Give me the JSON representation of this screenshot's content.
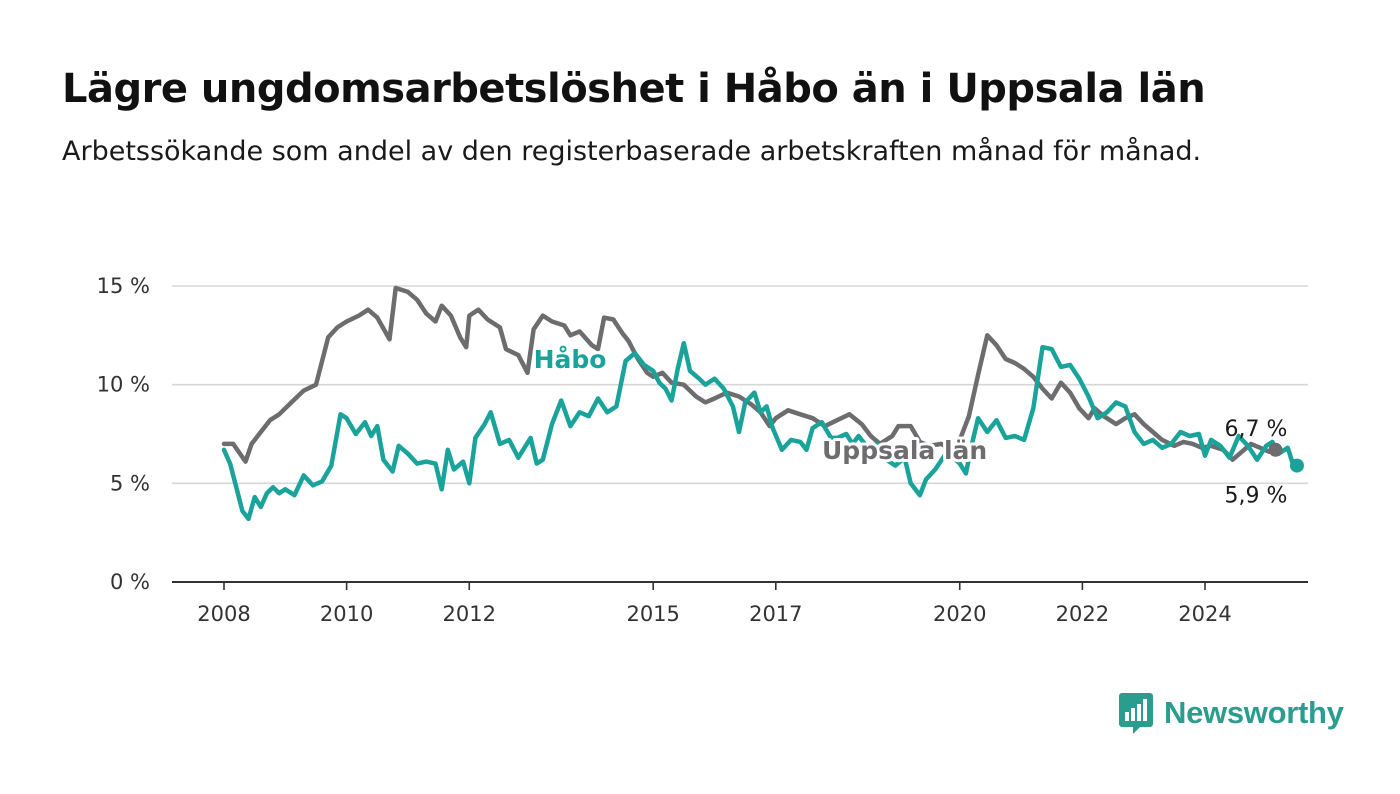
{
  "title": "Lägre ungdomsarbetslöshet i Håbo än i Uppsala län",
  "subtitle": "Arbetssökande som andel av den registerbaserade arbetskraften månad för månad.",
  "brand": {
    "name": "Newsworthy",
    "color": "#2a9d8f"
  },
  "chart_data": {
    "type": "line",
    "title": "Lägre ungdomsarbetslöshet i Håbo än i Uppsala län",
    "subtitle": "Arbetssökande som andel av den registerbaserade arbetskraften månad för månad.",
    "xlabel": "",
    "ylabel": "",
    "ylim": [
      0,
      15
    ],
    "xlim": [
      2008.0,
      2025.5
    ],
    "grid": "horizontal",
    "legend": "direct labels on lines",
    "y_ticks": [
      {
        "value": 0,
        "label": "0 %"
      },
      {
        "value": 5,
        "label": "5 %"
      },
      {
        "value": 10,
        "label": "10 %"
      },
      {
        "value": 15,
        "label": "15 %"
      }
    ],
    "x_ticks": [
      {
        "value": 2008,
        "label": "2008"
      },
      {
        "value": 2010,
        "label": "2010"
      },
      {
        "value": 2012,
        "label": "2012"
      },
      {
        "value": 2015,
        "label": "2015"
      },
      {
        "value": 2017,
        "label": "2017"
      },
      {
        "value": 2020,
        "label": "2020"
      },
      {
        "value": 2022,
        "label": "2022"
      },
      {
        "value": 2024,
        "label": "2024"
      }
    ],
    "series": [
      {
        "name": "Uppsala län",
        "color": "#6d6d70",
        "end_label": "6,7 %",
        "points": [
          [
            2008.0,
            7.0
          ],
          [
            2008.15,
            7.0
          ],
          [
            2008.35,
            6.1
          ],
          [
            2008.45,
            7.0
          ],
          [
            2008.6,
            7.6
          ],
          [
            2008.75,
            8.2
          ],
          [
            2008.9,
            8.5
          ],
          [
            2009.1,
            9.1
          ],
          [
            2009.3,
            9.7
          ],
          [
            2009.5,
            10.0
          ],
          [
            2009.7,
            12.4
          ],
          [
            2009.85,
            12.9
          ],
          [
            2010.0,
            13.2
          ],
          [
            2010.2,
            13.5
          ],
          [
            2010.35,
            13.8
          ],
          [
            2010.5,
            13.4
          ],
          [
            2010.7,
            12.3
          ],
          [
            2010.8,
            14.9
          ],
          [
            2011.0,
            14.7
          ],
          [
            2011.15,
            14.3
          ],
          [
            2011.3,
            13.6
          ],
          [
            2011.45,
            13.2
          ],
          [
            2011.55,
            14.0
          ],
          [
            2011.7,
            13.5
          ],
          [
            2011.85,
            12.4
          ],
          [
            2011.95,
            11.9
          ],
          [
            2012.0,
            13.5
          ],
          [
            2012.15,
            13.8
          ],
          [
            2012.3,
            13.3
          ],
          [
            2012.5,
            12.9
          ],
          [
            2012.6,
            11.8
          ],
          [
            2012.8,
            11.5
          ],
          [
            2012.95,
            10.6
          ],
          [
            2013.05,
            12.8
          ],
          [
            2013.2,
            13.5
          ],
          [
            2013.35,
            13.2
          ],
          [
            2013.55,
            13.0
          ],
          [
            2013.65,
            12.5
          ],
          [
            2013.8,
            12.7
          ],
          [
            2014.0,
            12.0
          ],
          [
            2014.1,
            11.8
          ],
          [
            2014.2,
            13.4
          ],
          [
            2014.35,
            13.3
          ],
          [
            2014.5,
            12.6
          ],
          [
            2014.6,
            12.2
          ],
          [
            2014.75,
            11.3
          ],
          [
            2014.9,
            10.6
          ],
          [
            2015.0,
            10.4
          ],
          [
            2015.15,
            10.6
          ],
          [
            2015.3,
            10.1
          ],
          [
            2015.5,
            10.0
          ],
          [
            2015.7,
            9.4
          ],
          [
            2015.85,
            9.1
          ],
          [
            2016.0,
            9.3
          ],
          [
            2016.2,
            9.6
          ],
          [
            2016.4,
            9.4
          ],
          [
            2016.6,
            9.0
          ],
          [
            2016.75,
            8.6
          ],
          [
            2016.9,
            7.9
          ],
          [
            2017.0,
            8.3
          ],
          [
            2017.2,
            8.7
          ],
          [
            2017.4,
            8.5
          ],
          [
            2017.6,
            8.3
          ],
          [
            2017.8,
            7.9
          ],
          [
            2018.0,
            8.2
          ],
          [
            2018.2,
            8.5
          ],
          [
            2018.4,
            8.0
          ],
          [
            2018.55,
            7.4
          ],
          [
            2018.7,
            7.0
          ],
          [
            2018.9,
            7.4
          ],
          [
            2019.0,
            7.9
          ],
          [
            2019.2,
            7.9
          ],
          [
            2019.35,
            7.1
          ],
          [
            2019.5,
            6.9
          ],
          [
            2019.7,
            7.0
          ],
          [
            2019.85,
            6.7
          ],
          [
            2020.0,
            7.2
          ],
          [
            2020.15,
            8.4
          ],
          [
            2020.3,
            10.5
          ],
          [
            2020.45,
            12.5
          ],
          [
            2020.6,
            12.0
          ],
          [
            2020.75,
            11.3
          ],
          [
            2020.9,
            11.1
          ],
          [
            2021.05,
            10.8
          ],
          [
            2021.2,
            10.4
          ],
          [
            2021.35,
            9.8
          ],
          [
            2021.5,
            9.3
          ],
          [
            2021.65,
            10.1
          ],
          [
            2021.8,
            9.6
          ],
          [
            2021.95,
            8.8
          ],
          [
            2022.1,
            8.3
          ],
          [
            2022.2,
            8.8
          ],
          [
            2022.35,
            8.4
          ],
          [
            2022.55,
            8.0
          ],
          [
            2022.7,
            8.3
          ],
          [
            2022.85,
            8.5
          ],
          [
            2023.0,
            8.0
          ],
          [
            2023.15,
            7.6
          ],
          [
            2023.3,
            7.2
          ],
          [
            2023.5,
            6.9
          ],
          [
            2023.65,
            7.1
          ],
          [
            2023.8,
            7.0
          ],
          [
            2023.95,
            6.8
          ],
          [
            2024.1,
            6.9
          ],
          [
            2024.3,
            6.7
          ],
          [
            2024.45,
            6.2
          ],
          [
            2024.6,
            6.6
          ],
          [
            2024.75,
            7.0
          ],
          [
            2024.9,
            6.8
          ],
          [
            2025.05,
            6.6
          ],
          [
            2025.15,
            6.7
          ]
        ]
      },
      {
        "name": "Håbo",
        "color": "#1aa39a",
        "end_label": "5,9 %",
        "points": [
          [
            2008.0,
            6.7
          ],
          [
            2008.1,
            6.0
          ],
          [
            2008.2,
            4.8
          ],
          [
            2008.3,
            3.6
          ],
          [
            2008.4,
            3.2
          ],
          [
            2008.5,
            4.3
          ],
          [
            2008.6,
            3.8
          ],
          [
            2008.7,
            4.5
          ],
          [
            2008.8,
            4.8
          ],
          [
            2008.9,
            4.5
          ],
          [
            2009.0,
            4.7
          ],
          [
            2009.15,
            4.4
          ],
          [
            2009.3,
            5.4
          ],
          [
            2009.45,
            4.9
          ],
          [
            2009.6,
            5.1
          ],
          [
            2009.75,
            5.9
          ],
          [
            2009.9,
            8.5
          ],
          [
            2010.0,
            8.3
          ],
          [
            2010.15,
            7.5
          ],
          [
            2010.3,
            8.1
          ],
          [
            2010.4,
            7.4
          ],
          [
            2010.5,
            7.9
          ],
          [
            2010.6,
            6.2
          ],
          [
            2010.75,
            5.6
          ],
          [
            2010.85,
            6.9
          ],
          [
            2011.0,
            6.5
          ],
          [
            2011.15,
            6.0
          ],
          [
            2011.3,
            6.1
          ],
          [
            2011.45,
            6.0
          ],
          [
            2011.55,
            4.7
          ],
          [
            2011.65,
            6.7
          ],
          [
            2011.75,
            5.7
          ],
          [
            2011.9,
            6.1
          ],
          [
            2012.0,
            5.0
          ],
          [
            2012.1,
            7.3
          ],
          [
            2012.25,
            8.0
          ],
          [
            2012.35,
            8.6
          ],
          [
            2012.5,
            7.0
          ],
          [
            2012.65,
            7.2
          ],
          [
            2012.8,
            6.3
          ],
          [
            2012.9,
            6.8
          ],
          [
            2013.0,
            7.3
          ],
          [
            2013.1,
            6.0
          ],
          [
            2013.2,
            6.2
          ],
          [
            2013.35,
            8.0
          ],
          [
            2013.5,
            9.2
          ],
          [
            2013.65,
            7.9
          ],
          [
            2013.8,
            8.6
          ],
          [
            2013.95,
            8.4
          ],
          [
            2014.1,
            9.3
          ],
          [
            2014.25,
            8.6
          ],
          [
            2014.4,
            8.9
          ],
          [
            2014.55,
            11.2
          ],
          [
            2014.7,
            11.6
          ],
          [
            2014.85,
            11.0
          ],
          [
            2015.0,
            10.7
          ],
          [
            2015.1,
            10.1
          ],
          [
            2015.2,
            9.8
          ],
          [
            2015.3,
            9.2
          ],
          [
            2015.4,
            10.8
          ],
          [
            2015.5,
            12.1
          ],
          [
            2015.6,
            10.7
          ],
          [
            2015.75,
            10.3
          ],
          [
            2015.85,
            10.0
          ],
          [
            2016.0,
            10.3
          ],
          [
            2016.15,
            9.8
          ],
          [
            2016.3,
            8.9
          ],
          [
            2016.4,
            7.6
          ],
          [
            2016.5,
            9.1
          ],
          [
            2016.65,
            9.6
          ],
          [
            2016.75,
            8.6
          ],
          [
            2016.85,
            8.9
          ],
          [
            2016.95,
            7.8
          ],
          [
            2017.1,
            6.7
          ],
          [
            2017.25,
            7.2
          ],
          [
            2017.4,
            7.1
          ],
          [
            2017.5,
            6.7
          ],
          [
            2017.6,
            7.8
          ],
          [
            2017.75,
            8.1
          ],
          [
            2017.9,
            7.3
          ],
          [
            2018.0,
            7.3
          ],
          [
            2018.15,
            7.5
          ],
          [
            2018.25,
            7.0
          ],
          [
            2018.35,
            7.4
          ],
          [
            2018.5,
            6.8
          ],
          [
            2018.65,
            7.0
          ],
          [
            2018.8,
            6.2
          ],
          [
            2018.95,
            5.9
          ],
          [
            2019.1,
            6.3
          ],
          [
            2019.2,
            5.0
          ],
          [
            2019.35,
            4.4
          ],
          [
            2019.45,
            5.2
          ],
          [
            2019.6,
            5.7
          ],
          [
            2019.75,
            6.4
          ],
          [
            2019.9,
            6.3
          ],
          [
            2020.0,
            6.0
          ],
          [
            2020.1,
            5.5
          ],
          [
            2020.2,
            7.0
          ],
          [
            2020.3,
            8.3
          ],
          [
            2020.45,
            7.6
          ],
          [
            2020.6,
            8.2
          ],
          [
            2020.75,
            7.3
          ],
          [
            2020.9,
            7.4
          ],
          [
            2021.05,
            7.2
          ],
          [
            2021.2,
            8.8
          ],
          [
            2021.35,
            11.9
          ],
          [
            2021.5,
            11.8
          ],
          [
            2021.65,
            10.9
          ],
          [
            2021.8,
            11.0
          ],
          [
            2021.95,
            10.3
          ],
          [
            2022.1,
            9.4
          ],
          [
            2022.25,
            8.3
          ],
          [
            2022.4,
            8.6
          ],
          [
            2022.55,
            9.1
          ],
          [
            2022.7,
            8.9
          ],
          [
            2022.85,
            7.6
          ],
          [
            2023.0,
            7.0
          ],
          [
            2023.15,
            7.2
          ],
          [
            2023.3,
            6.8
          ],
          [
            2023.45,
            7.0
          ],
          [
            2023.6,
            7.6
          ],
          [
            2023.75,
            7.4
          ],
          [
            2023.9,
            7.5
          ],
          [
            2024.0,
            6.4
          ],
          [
            2024.1,
            7.2
          ],
          [
            2024.25,
            6.9
          ],
          [
            2024.4,
            6.3
          ],
          [
            2024.55,
            7.4
          ],
          [
            2024.7,
            6.9
          ],
          [
            2024.85,
            6.2
          ],
          [
            2025.0,
            6.9
          ],
          [
            2025.1,
            7.1
          ],
          [
            2025.2,
            6.5
          ],
          [
            2025.35,
            6.8
          ],
          [
            2025.45,
            5.8
          ],
          [
            2025.5,
            5.9
          ]
        ]
      }
    ]
  }
}
